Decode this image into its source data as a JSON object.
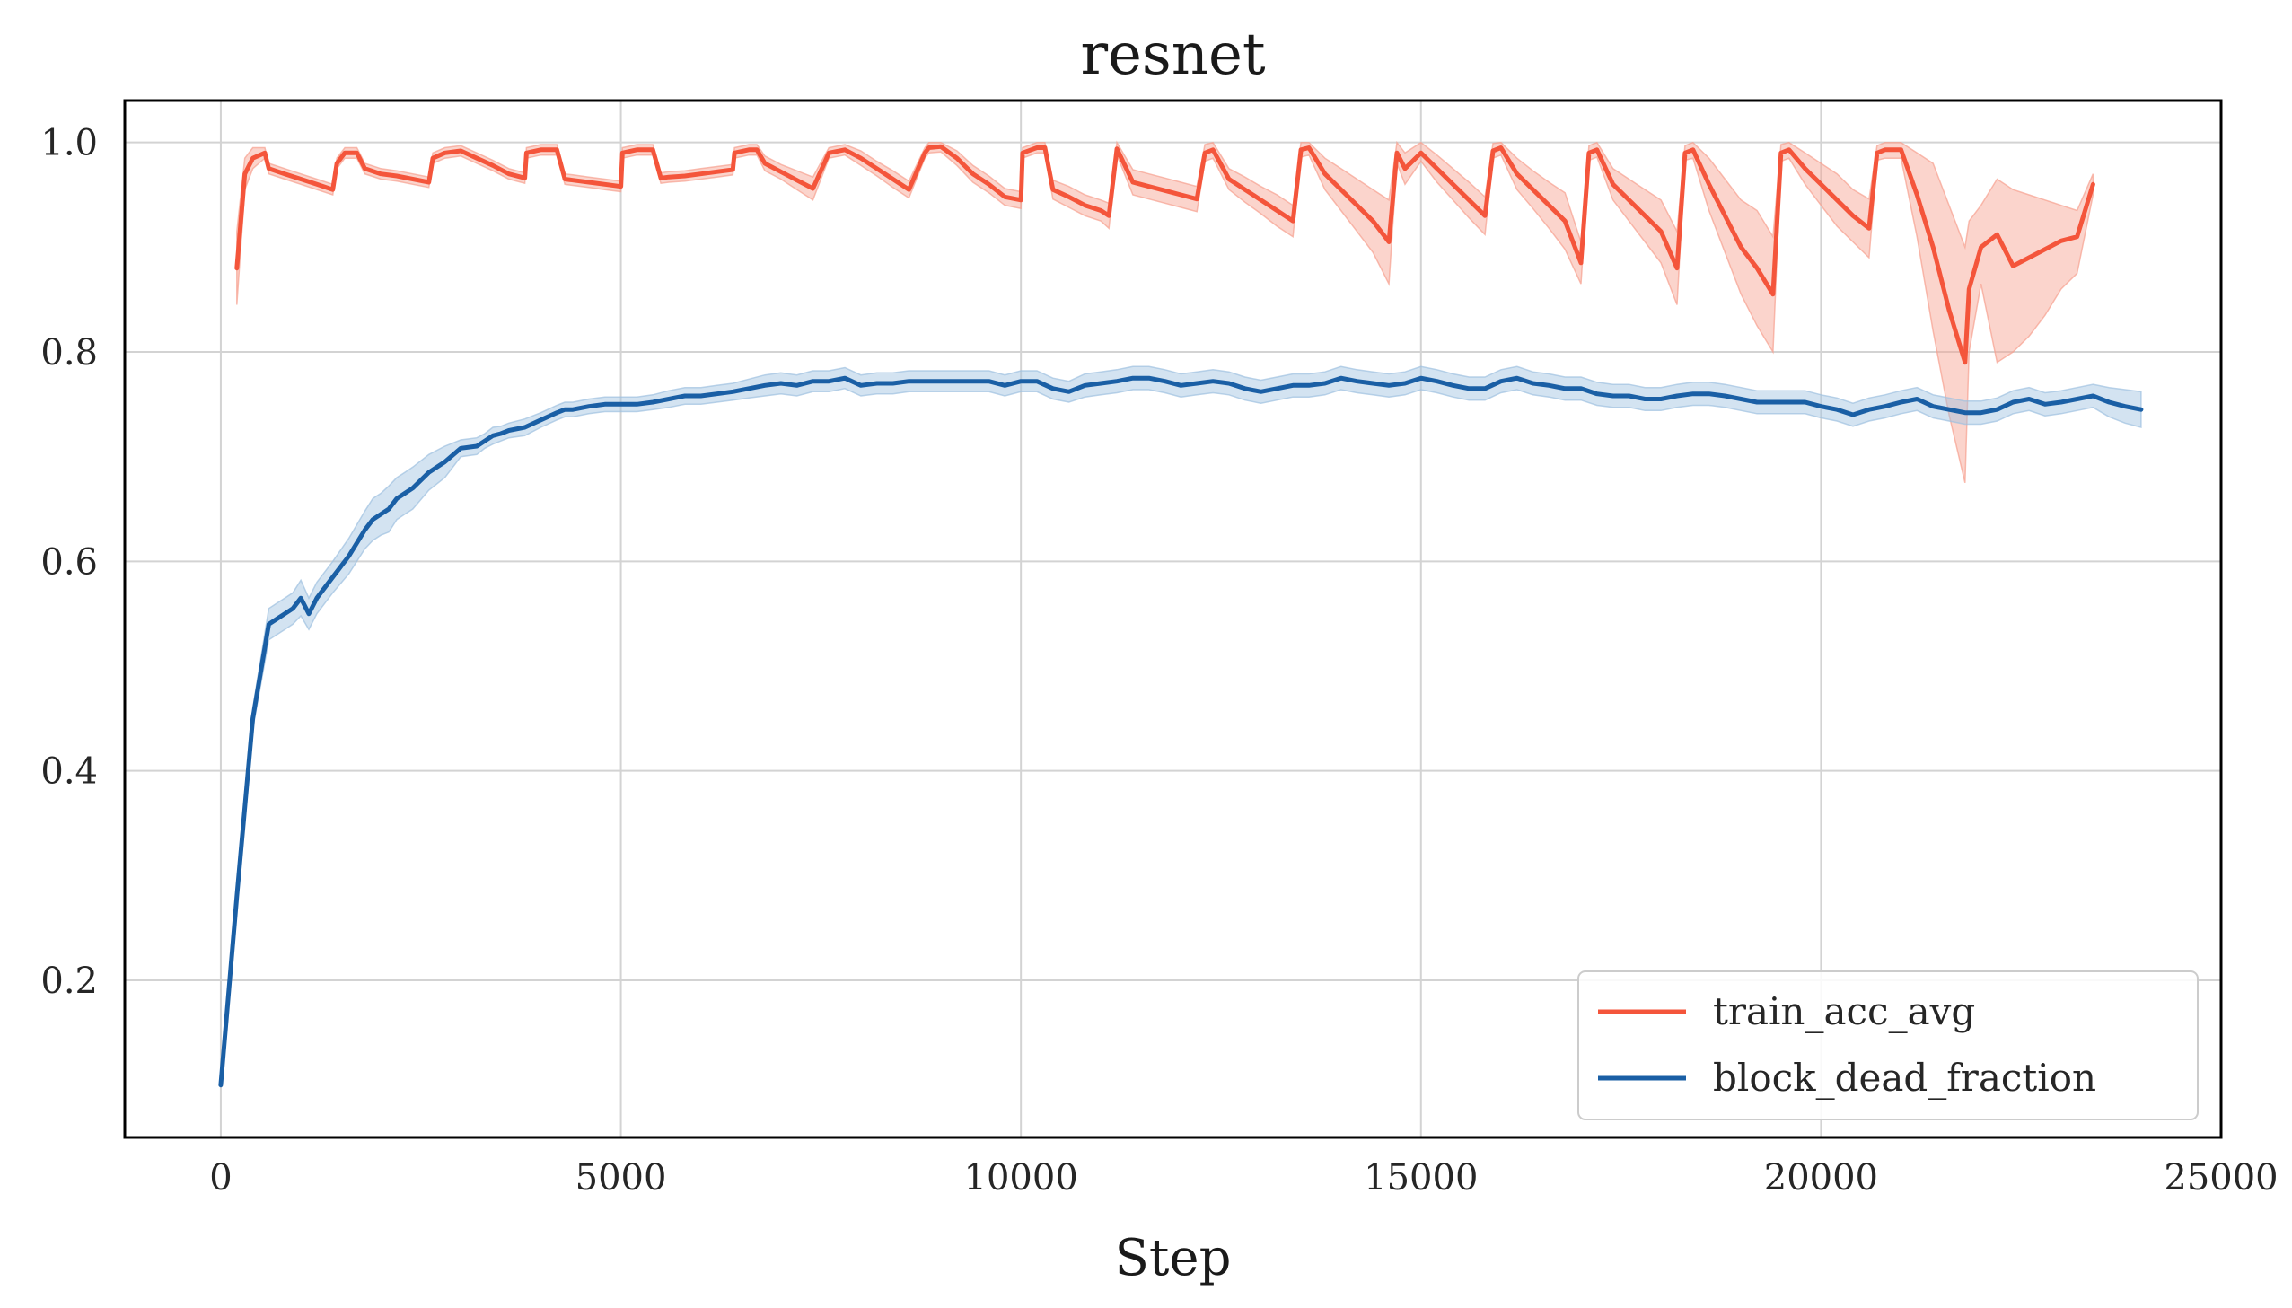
{
  "chart_data": {
    "type": "line",
    "title": "resnet",
    "xlabel": "Step",
    "ylabel": "",
    "xlim": [
      -1200,
      25000
    ],
    "ylim": [
      0.05,
      1.04
    ],
    "xticks": [
      0,
      5000,
      10000,
      15000,
      20000,
      25000
    ],
    "xtick_labels": [
      "0",
      "5000",
      "10000",
      "15000",
      "20000",
      "25000"
    ],
    "yticks": [
      0.2,
      0.4,
      0.6,
      0.8,
      1.0
    ],
    "ytick_labels": [
      "0.2",
      "0.4",
      "0.6",
      "0.8",
      "1.0"
    ],
    "grid": true,
    "legend_position": "lower-right",
    "series": [
      {
        "name": "train_acc_avg",
        "color": "#f4553b",
        "band_color": "#f6a08f",
        "x": [
          200,
          300,
          400,
          550,
          600,
          800,
          1000,
          1200,
          1400,
          1450,
          1550,
          1700,
          1800,
          2000,
          2200,
          2400,
          2600,
          2650,
          2800,
          3000,
          3200,
          3400,
          3600,
          3800,
          3820,
          4000,
          4200,
          4300,
          4400,
          4600,
          4800,
          5000,
          5020,
          5200,
          5400,
          5500,
          5600,
          5800,
          6000,
          6200,
          6400,
          6420,
          6600,
          6700,
          6800,
          7000,
          7200,
          7400,
          7600,
          7800,
          8000,
          8200,
          8400,
          8600,
          8800,
          8850,
          9000,
          9200,
          9400,
          9600,
          9800,
          10000,
          10020,
          10200,
          10300,
          10400,
          10600,
          10800,
          11000,
          11100,
          11200,
          11400,
          11600,
          11800,
          12000,
          12200,
          12300,
          12400,
          12600,
          12800,
          13000,
          13200,
          13400,
          13500,
          13600,
          13800,
          14000,
          14200,
          14400,
          14600,
          14700,
          14800,
          15000,
          15200,
          15400,
          15600,
          15800,
          15900,
          16000,
          16200,
          16400,
          16600,
          16800,
          17000,
          17100,
          17200,
          17400,
          17600,
          17800,
          18000,
          18200,
          18300,
          18400,
          18600,
          18800,
          19000,
          19200,
          19400,
          19500,
          19600,
          19800,
          20000,
          20200,
          20400,
          20600,
          20700,
          20800,
          21000,
          21200,
          21400,
          21600,
          21800,
          21850,
          22000,
          22200,
          22400,
          22600,
          22800,
          23000,
          23200,
          23400
        ],
        "values": [
          0.88,
          0.97,
          0.985,
          0.99,
          0.975,
          0.97,
          0.965,
          0.96,
          0.955,
          0.98,
          0.99,
          0.99,
          0.975,
          0.97,
          0.968,
          0.965,
          0.962,
          0.985,
          0.99,
          0.992,
          0.985,
          0.978,
          0.97,
          0.966,
          0.99,
          0.993,
          0.993,
          0.965,
          0.964,
          0.962,
          0.96,
          0.958,
          0.99,
          0.993,
          0.993,
          0.966,
          0.967,
          0.968,
          0.97,
          0.972,
          0.974,
          0.99,
          0.993,
          0.993,
          0.98,
          0.972,
          0.964,
          0.956,
          0.99,
          0.993,
          0.985,
          0.975,
          0.965,
          0.955,
          0.99,
          0.995,
          0.996,
          0.985,
          0.97,
          0.96,
          0.948,
          0.945,
          0.99,
          0.995,
          0.995,
          0.955,
          0.948,
          0.94,
          0.935,
          0.93,
          0.994,
          0.962,
          0.958,
          0.954,
          0.95,
          0.946,
          0.99,
          0.993,
          0.965,
          0.955,
          0.945,
          0.935,
          0.925,
          0.993,
          0.995,
          0.97,
          0.955,
          0.94,
          0.925,
          0.905,
          0.99,
          0.975,
          0.99,
          0.975,
          0.96,
          0.945,
          0.93,
          0.992,
          0.995,
          0.97,
          0.955,
          0.94,
          0.925,
          0.885,
          0.99,
          0.993,
          0.96,
          0.945,
          0.93,
          0.915,
          0.88,
          0.99,
          0.993,
          0.96,
          0.93,
          0.9,
          0.88,
          0.855,
          0.99,
          0.993,
          0.975,
          0.96,
          0.945,
          0.93,
          0.918,
          0.99,
          0.993,
          0.993,
          0.95,
          0.9,
          0.84,
          0.79,
          0.86,
          0.9,
          0.912,
          0.882,
          0.89,
          0.898,
          0.906,
          0.91,
          0.96
        ],
        "band_lower": [
          0.845,
          0.955,
          0.975,
          0.985,
          0.97,
          0.965,
          0.96,
          0.955,
          0.95,
          0.975,
          0.985,
          0.985,
          0.97,
          0.965,
          0.963,
          0.96,
          0.957,
          0.98,
          0.985,
          0.987,
          0.98,
          0.973,
          0.965,
          0.961,
          0.985,
          0.988,
          0.988,
          0.96,
          0.959,
          0.957,
          0.955,
          0.953,
          0.985,
          0.988,
          0.988,
          0.961,
          0.962,
          0.963,
          0.965,
          0.967,
          0.969,
          0.985,
          0.988,
          0.988,
          0.973,
          0.965,
          0.955,
          0.945,
          0.985,
          0.988,
          0.978,
          0.968,
          0.957,
          0.947,
          0.985,
          0.99,
          0.991,
          0.978,
          0.962,
          0.952,
          0.94,
          0.937,
          0.985,
          0.99,
          0.99,
          0.946,
          0.938,
          0.93,
          0.925,
          0.918,
          0.988,
          0.95,
          0.946,
          0.942,
          0.938,
          0.934,
          0.982,
          0.985,
          0.955,
          0.943,
          0.932,
          0.92,
          0.91,
          0.986,
          0.988,
          0.955,
          0.935,
          0.915,
          0.895,
          0.865,
          0.98,
          0.96,
          0.982,
          0.962,
          0.945,
          0.928,
          0.912,
          0.985,
          0.988,
          0.955,
          0.937,
          0.918,
          0.898,
          0.865,
          0.983,
          0.986,
          0.945,
          0.925,
          0.905,
          0.885,
          0.845,
          0.983,
          0.985,
          0.935,
          0.895,
          0.855,
          0.825,
          0.8,
          0.982,
          0.985,
          0.96,
          0.94,
          0.92,
          0.905,
          0.89,
          0.983,
          0.985,
          0.985,
          0.91,
          0.82,
          0.74,
          0.675,
          0.8,
          0.865,
          0.79,
          0.8,
          0.815,
          0.835,
          0.86,
          0.875,
          0.95
        ],
        "band_upper": [
          0.915,
          0.985,
          0.995,
          0.995,
          0.98,
          0.975,
          0.97,
          0.965,
          0.96,
          0.985,
          0.995,
          0.995,
          0.98,
          0.975,
          0.973,
          0.97,
          0.967,
          0.99,
          0.995,
          0.997,
          0.99,
          0.983,
          0.975,
          0.971,
          0.995,
          0.998,
          0.998,
          0.97,
          0.969,
          0.967,
          0.965,
          0.963,
          0.995,
          0.998,
          0.998,
          0.971,
          0.972,
          0.973,
          0.975,
          0.977,
          0.979,
          0.995,
          0.998,
          0.998,
          0.987,
          0.979,
          0.973,
          0.967,
          0.995,
          0.998,
          0.992,
          0.982,
          0.973,
          0.963,
          0.995,
          1.0,
          1.0,
          0.992,
          0.978,
          0.968,
          0.956,
          0.953,
          0.995,
          1.0,
          1.0,
          0.964,
          0.958,
          0.95,
          0.945,
          0.942,
          1.0,
          0.974,
          0.97,
          0.966,
          0.962,
          0.958,
          0.998,
          1.0,
          0.975,
          0.967,
          0.958,
          0.95,
          0.94,
          1.0,
          1.0,
          0.985,
          0.975,
          0.965,
          0.955,
          0.945,
          1.0,
          0.99,
          1.0,
          0.988,
          0.975,
          0.962,
          0.948,
          0.999,
          1.0,
          0.985,
          0.973,
          0.962,
          0.952,
          0.905,
          0.997,
          1.0,
          0.975,
          0.965,
          0.955,
          0.945,
          0.915,
          0.997,
          1.0,
          0.985,
          0.965,
          0.945,
          0.935,
          0.91,
          0.998,
          1.0,
          0.99,
          0.98,
          0.97,
          0.955,
          0.946,
          0.997,
          1.0,
          1.0,
          0.99,
          0.98,
          0.94,
          0.9,
          0.925,
          0.94,
          0.965,
          0.955,
          0.95,
          0.945,
          0.94,
          0.935,
          0.97
        ]
      },
      {
        "name": "block_dead_fraction",
        "color": "#1a5fa5",
        "band_color": "#9ec1e0",
        "x": [
          0,
          200,
          400,
          600,
          700,
          800,
          900,
          1000,
          1100,
          1200,
          1400,
          1600,
          1800,
          1900,
          2000,
          2100,
          2200,
          2300,
          2400,
          2600,
          2800,
          3000,
          3200,
          3300,
          3400,
          3500,
          3600,
          3800,
          4000,
          4200,
          4300,
          4400,
          4600,
          4800,
          5000,
          5200,
          5400,
          5600,
          5800,
          6000,
          6200,
          6400,
          6600,
          6800,
          7000,
          7200,
          7400,
          7600,
          7800,
          8000,
          8200,
          8400,
          8600,
          8800,
          9000,
          9200,
          9400,
          9600,
          9800,
          10000,
          10200,
          10400,
          10600,
          10800,
          11000,
          11200,
          11400,
          11600,
          11800,
          12000,
          12200,
          12400,
          12600,
          12800,
          13000,
          13200,
          13400,
          13600,
          13800,
          14000,
          14200,
          14400,
          14600,
          14800,
          15000,
          15200,
          15400,
          15600,
          15800,
          16000,
          16200,
          16400,
          16600,
          16800,
          17000,
          17200,
          17400,
          17600,
          17800,
          18000,
          18200,
          18400,
          18600,
          18800,
          19000,
          19200,
          19400,
          19600,
          19800,
          20000,
          20200,
          20400,
          20600,
          20800,
          21000,
          21200,
          21400,
          21600,
          21800,
          22000,
          22200,
          22400,
          22600,
          22800,
          23000,
          23200,
          23400,
          23600,
          23800,
          24000
        ],
        "values": [
          0.1,
          0.28,
          0.45,
          0.54,
          0.545,
          0.55,
          0.555,
          0.565,
          0.55,
          0.565,
          0.585,
          0.605,
          0.63,
          0.64,
          0.645,
          0.65,
          0.66,
          0.665,
          0.67,
          0.685,
          0.695,
          0.708,
          0.71,
          0.715,
          0.72,
          0.722,
          0.725,
          0.728,
          0.735,
          0.742,
          0.745,
          0.745,
          0.748,
          0.75,
          0.75,
          0.75,
          0.752,
          0.755,
          0.758,
          0.758,
          0.76,
          0.762,
          0.765,
          0.768,
          0.77,
          0.768,
          0.772,
          0.772,
          0.775,
          0.768,
          0.77,
          0.77,
          0.772,
          0.772,
          0.772,
          0.772,
          0.772,
          0.772,
          0.768,
          0.772,
          0.772,
          0.765,
          0.762,
          0.768,
          0.77,
          0.772,
          0.775,
          0.775,
          0.772,
          0.768,
          0.77,
          0.772,
          0.77,
          0.765,
          0.762,
          0.765,
          0.768,
          0.768,
          0.77,
          0.775,
          0.772,
          0.77,
          0.768,
          0.77,
          0.775,
          0.772,
          0.768,
          0.765,
          0.765,
          0.772,
          0.775,
          0.77,
          0.768,
          0.765,
          0.765,
          0.76,
          0.758,
          0.758,
          0.755,
          0.755,
          0.758,
          0.76,
          0.76,
          0.758,
          0.755,
          0.752,
          0.752,
          0.752,
          0.752,
          0.748,
          0.745,
          0.74,
          0.745,
          0.748,
          0.752,
          0.755,
          0.748,
          0.745,
          0.742,
          0.742,
          0.745,
          0.752,
          0.755,
          0.75,
          0.752,
          0.755,
          0.758,
          0.752,
          0.748,
          0.745
        ],
        "band_lower": [
          0.1,
          0.275,
          0.44,
          0.525,
          0.53,
          0.535,
          0.54,
          0.548,
          0.535,
          0.55,
          0.57,
          0.588,
          0.612,
          0.62,
          0.625,
          0.628,
          0.64,
          0.645,
          0.65,
          0.668,
          0.68,
          0.7,
          0.702,
          0.708,
          0.712,
          0.715,
          0.718,
          0.72,
          0.728,
          0.735,
          0.738,
          0.738,
          0.741,
          0.743,
          0.743,
          0.743,
          0.745,
          0.747,
          0.75,
          0.75,
          0.752,
          0.754,
          0.756,
          0.758,
          0.76,
          0.758,
          0.762,
          0.762,
          0.765,
          0.758,
          0.76,
          0.76,
          0.762,
          0.762,
          0.762,
          0.762,
          0.762,
          0.762,
          0.758,
          0.762,
          0.762,
          0.755,
          0.752,
          0.757,
          0.759,
          0.761,
          0.764,
          0.764,
          0.761,
          0.757,
          0.759,
          0.761,
          0.759,
          0.754,
          0.751,
          0.754,
          0.757,
          0.757,
          0.759,
          0.764,
          0.761,
          0.759,
          0.757,
          0.759,
          0.764,
          0.761,
          0.757,
          0.754,
          0.754,
          0.761,
          0.764,
          0.759,
          0.757,
          0.754,
          0.754,
          0.749,
          0.747,
          0.747,
          0.744,
          0.744,
          0.747,
          0.749,
          0.749,
          0.747,
          0.744,
          0.741,
          0.741,
          0.741,
          0.741,
          0.737,
          0.734,
          0.729,
          0.734,
          0.737,
          0.741,
          0.744,
          0.737,
          0.734,
          0.731,
          0.731,
          0.734,
          0.741,
          0.744,
          0.739,
          0.741,
          0.744,
          0.747,
          0.738,
          0.732,
          0.728
        ],
        "band_upper": [
          0.105,
          0.285,
          0.46,
          0.555,
          0.56,
          0.565,
          0.57,
          0.582,
          0.565,
          0.58,
          0.6,
          0.622,
          0.648,
          0.66,
          0.665,
          0.672,
          0.68,
          0.685,
          0.69,
          0.702,
          0.71,
          0.716,
          0.718,
          0.722,
          0.728,
          0.729,
          0.732,
          0.736,
          0.742,
          0.749,
          0.752,
          0.752,
          0.755,
          0.757,
          0.757,
          0.757,
          0.759,
          0.763,
          0.766,
          0.766,
          0.768,
          0.77,
          0.774,
          0.778,
          0.78,
          0.778,
          0.782,
          0.782,
          0.785,
          0.778,
          0.78,
          0.78,
          0.782,
          0.782,
          0.782,
          0.782,
          0.782,
          0.782,
          0.778,
          0.782,
          0.782,
          0.775,
          0.772,
          0.779,
          0.781,
          0.783,
          0.786,
          0.786,
          0.783,
          0.779,
          0.781,
          0.783,
          0.781,
          0.776,
          0.773,
          0.776,
          0.779,
          0.779,
          0.781,
          0.786,
          0.783,
          0.781,
          0.779,
          0.781,
          0.786,
          0.783,
          0.779,
          0.776,
          0.776,
          0.783,
          0.786,
          0.781,
          0.779,
          0.776,
          0.776,
          0.771,
          0.769,
          0.769,
          0.766,
          0.766,
          0.769,
          0.771,
          0.771,
          0.769,
          0.766,
          0.763,
          0.763,
          0.763,
          0.763,
          0.759,
          0.756,
          0.751,
          0.756,
          0.759,
          0.763,
          0.766,
          0.759,
          0.756,
          0.753,
          0.753,
          0.756,
          0.763,
          0.766,
          0.761,
          0.763,
          0.766,
          0.769,
          0.766,
          0.764,
          0.762
        ]
      }
    ]
  }
}
